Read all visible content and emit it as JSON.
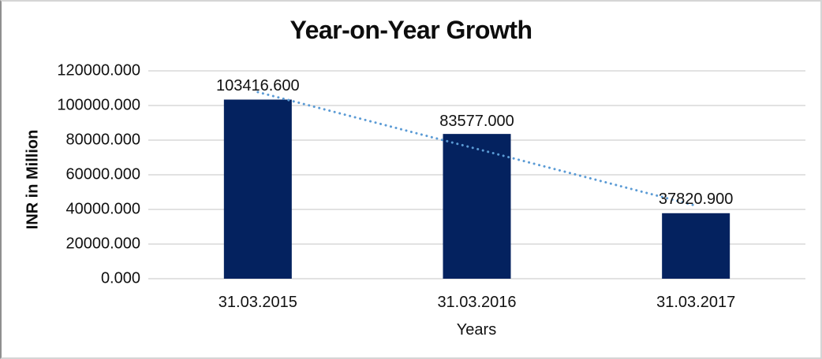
{
  "chart_data": {
    "type": "bar",
    "title": "Year-on-Year Growth",
    "xlabel": "Years",
    "ylabel": "INR in Million",
    "categories": [
      "31.03.2015",
      "31.03.2016",
      "31.03.2017"
    ],
    "values": [
      103416.6,
      83577.0,
      37820.9
    ],
    "value_labels": [
      "103416.600",
      "83577.000",
      "37820.900"
    ],
    "ylim": [
      0,
      120000
    ],
    "ytick_step": 20000,
    "ytick_labels": [
      "0.000",
      "20000.000",
      "40000.000",
      "60000.000",
      "80000.000",
      "100000.000",
      "120000.000"
    ],
    "grid": true,
    "legend_position": "none",
    "bar_color": "#04225f",
    "gridline_color": "#d9d9d9",
    "trendline": {
      "type": "linear",
      "style": "dotted",
      "color": "#5b9bd5"
    }
  }
}
